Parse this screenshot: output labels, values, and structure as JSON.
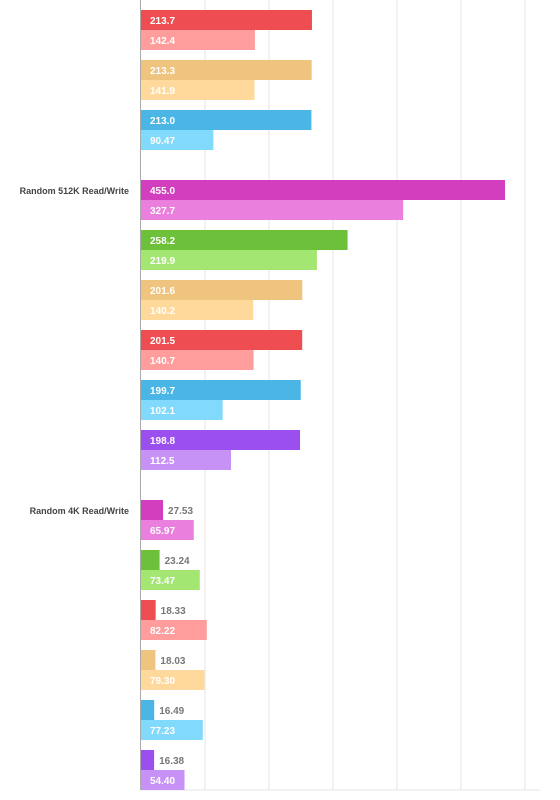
{
  "colors": {
    "magenta": "#d33ebf",
    "magenta_light": "#ea7fde",
    "green": "#6cc03a",
    "green_light": "#a3e671",
    "red": "#ee4e52",
    "red_light": "#ff9c9c",
    "tan": "#eec47f",
    "tan_light": "#ffd99b",
    "blue": "#4bb6e6",
    "blue_light": "#81d9fb",
    "purple": "#9b4fee",
    "purple_light": "#c792f6",
    "grid": "#e6e6e6",
    "axis": "#aaaaaa",
    "label_inside": "#ffffff",
    "label_outside": "#777777",
    "category_label": "#444444"
  },
  "chart_data": {
    "type": "bar",
    "orientation": "horizontal",
    "x_grid_step": 80,
    "groups": [
      {
        "label": "",
        "series": [
          {
            "colors": [
              "red",
              "red_light"
            ],
            "read": 213.7,
            "write": 142.4,
            "read_label": "213.7",
            "write_label": "142.4"
          },
          {
            "colors": [
              "tan",
              "tan_light"
            ],
            "read": 213.3,
            "write": 141.9,
            "read_label": "213.3",
            "write_label": "141.9"
          },
          {
            "colors": [
              "blue",
              "blue_light"
            ],
            "read": 213.0,
            "write": 90.47,
            "read_label": "213.0",
            "write_label": "90.47"
          }
        ]
      },
      {
        "label": "Random 512K Read/Write",
        "series": [
          {
            "colors": [
              "magenta",
              "magenta_light"
            ],
            "read": 455.0,
            "write": 327.7,
            "read_label": "455.0",
            "write_label": "327.7"
          },
          {
            "colors": [
              "green",
              "green_light"
            ],
            "read": 258.2,
            "write": 219.9,
            "read_label": "258.2",
            "write_label": "219.9"
          },
          {
            "colors": [
              "tan",
              "tan_light"
            ],
            "read": 201.6,
            "write": 140.2,
            "read_label": "201.6",
            "write_label": "140.2"
          },
          {
            "colors": [
              "red",
              "red_light"
            ],
            "read": 201.5,
            "write": 140.7,
            "read_label": "201.5",
            "write_label": "140.7"
          },
          {
            "colors": [
              "blue",
              "blue_light"
            ],
            "read": 199.7,
            "write": 102.1,
            "read_label": "199.7",
            "write_label": "102.1"
          },
          {
            "colors": [
              "purple",
              "purple_light"
            ],
            "read": 198.8,
            "write": 112.5,
            "read_label": "198.8",
            "write_label": "112.5"
          }
        ]
      },
      {
        "label": "Random 4K Read/Write",
        "series": [
          {
            "colors": [
              "magenta",
              "magenta_light"
            ],
            "read": 27.53,
            "write": 65.97,
            "read_label": "27.53",
            "write_label": "65.97"
          },
          {
            "colors": [
              "green",
              "green_light"
            ],
            "read": 23.24,
            "write": 73.47,
            "read_label": "23.24",
            "write_label": "73.47"
          },
          {
            "colors": [
              "red",
              "red_light"
            ],
            "read": 18.33,
            "write": 82.22,
            "read_label": "18.33",
            "write_label": "82.22"
          },
          {
            "colors": [
              "tan",
              "tan_light"
            ],
            "read": 18.03,
            "write": 79.3,
            "read_label": "18.03",
            "write_label": "79.30"
          },
          {
            "colors": [
              "blue",
              "blue_light"
            ],
            "read": 16.49,
            "write": 77.23,
            "read_label": "16.49",
            "write_label": "77.23"
          },
          {
            "colors": [
              "purple",
              "purple_light"
            ],
            "read": 16.38,
            "write": 54.4,
            "read_label": "16.38",
            "write_label": "54.40"
          }
        ]
      }
    ]
  }
}
